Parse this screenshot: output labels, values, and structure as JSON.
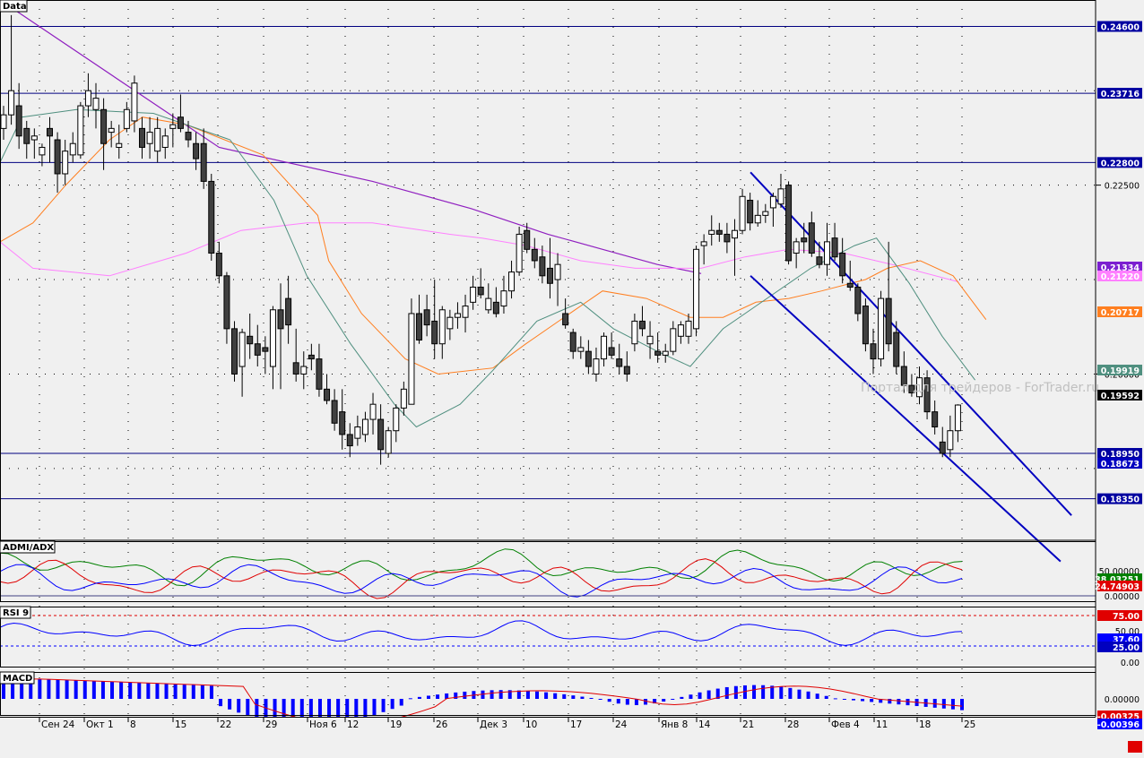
{
  "panels": {
    "main": {
      "label": "Data"
    },
    "admi": {
      "label": "ADMI/ADX",
      "ticks": [
        "50.00000",
        "0.00000"
      ],
      "badges": [
        "38.03251",
        "24.74903"
      ]
    },
    "rsi": {
      "label": "RSI 9",
      "ticks": [
        "75.00",
        "50.00",
        "25.00",
        "0.00"
      ],
      "badges": [
        "37.60"
      ]
    },
    "macd": {
      "label": "MACD",
      "ticks": [
        "0.00000"
      ],
      "badges": [
        "-0.00325",
        "-0.00396"
      ]
    }
  },
  "watermark": "Портал для трейдеров - ForTrader.ru",
  "chart_data": {
    "type": "candlestick",
    "ylim": [
      0.178,
      0.2495
    ],
    "price_ticks": [
      "0.22500",
      "0.20000"
    ],
    "x_labels": [
      "Сен 24",
      "Окт 1",
      "8",
      "15",
      "22",
      "29",
      "Ноя 6",
      "12",
      "19",
      "26",
      "Дек 3",
      "10",
      "17",
      "24",
      "Янв 8",
      "14",
      "21",
      "28",
      "Фев 4",
      "11",
      "18",
      "25"
    ],
    "levels": [
      {
        "value": 0.246,
        "label": "0.24600"
      },
      {
        "value": 0.23716,
        "label": "0.23716"
      },
      {
        "value": 0.228,
        "label": "0.22800"
      },
      {
        "value": 0.1895,
        "label": "0.18950"
      },
      {
        "value": 0.1835,
        "label": "0.18350"
      }
    ],
    "badges": [
      {
        "label": "0.21334",
        "color": "#7b1fd0"
      },
      {
        "label": "0.21220",
        "color": "#ff80ff"
      },
      {
        "label": "0.20717",
        "color": "#ff7f20"
      },
      {
        "label": "0.19919",
        "color": "#4f8f7f"
      },
      {
        "label": "0.19592",
        "color": "#000000"
      },
      {
        "label": "0.18673",
        "color": "#0000c0"
      }
    ],
    "colors": {
      "grid": "#000000",
      "level": "#000080",
      "channel": "#0000c0",
      "ma_long": "#9020c0",
      "ma_mid": "#ff80ff",
      "ma_short": "#ff7f20",
      "ma_fast": "#4f8f7f",
      "adx_green": "#008000",
      "adx_red": "#e00000",
      "adx_blue": "#0000ff",
      "rsi": "#0000ff",
      "macd_bar": "#0000ff",
      "macd_signal": "#e00000"
    },
    "candles": [
      [
        0.2325,
        0.2355,
        0.231,
        0.2343
      ],
      [
        0.2343,
        0.2475,
        0.233,
        0.2375
      ],
      [
        0.2355,
        0.2385,
        0.2298,
        0.2315
      ],
      [
        0.2325,
        0.2335,
        0.2285,
        0.2305
      ],
      [
        0.231,
        0.2325,
        0.2285,
        0.2315
      ],
      [
        0.229,
        0.2305,
        0.2275,
        0.23
      ],
      [
        0.2325,
        0.234,
        0.228,
        0.2315
      ],
      [
        0.231,
        0.232,
        0.224,
        0.2265
      ],
      [
        0.2265,
        0.231,
        0.225,
        0.2295
      ],
      [
        0.229,
        0.232,
        0.228,
        0.2305
      ],
      [
        0.229,
        0.236,
        0.2285,
        0.2355
      ],
      [
        0.2355,
        0.2398,
        0.234,
        0.2375
      ],
      [
        0.235,
        0.2385,
        0.2325,
        0.2365
      ],
      [
        0.235,
        0.2365,
        0.227,
        0.2305
      ],
      [
        0.232,
        0.2335,
        0.23,
        0.2325
      ],
      [
        0.23,
        0.233,
        0.2285,
        0.2305
      ],
      [
        0.2325,
        0.236,
        0.232,
        0.235
      ],
      [
        0.2335,
        0.2395,
        0.232,
        0.2385
      ],
      [
        0.2325,
        0.234,
        0.2285,
        0.23
      ],
      [
        0.2305,
        0.234,
        0.2285,
        0.232
      ],
      [
        0.2295,
        0.234,
        0.228,
        0.2325
      ],
      [
        0.23,
        0.2325,
        0.2285,
        0.2315
      ],
      [
        0.2325,
        0.2345,
        0.23,
        0.233
      ],
      [
        0.234,
        0.237,
        0.232,
        0.2325
      ],
      [
        0.232,
        0.2335,
        0.23,
        0.231
      ],
      [
        0.2305,
        0.232,
        0.227,
        0.2285
      ],
      [
        0.2305,
        0.2325,
        0.2245,
        0.2255
      ],
      [
        0.2255,
        0.2265,
        0.215,
        0.216
      ],
      [
        0.216,
        0.2175,
        0.212,
        0.213
      ],
      [
        0.213,
        0.2135,
        0.204,
        0.206
      ],
      [
        0.206,
        0.207,
        0.199,
        0.2
      ],
      [
        0.201,
        0.206,
        0.197,
        0.2055
      ],
      [
        0.205,
        0.208,
        0.202,
        0.204
      ],
      [
        0.204,
        0.2065,
        0.201,
        0.2025
      ],
      [
        0.2035,
        0.205,
        0.2,
        0.203
      ],
      [
        0.201,
        0.209,
        0.198,
        0.2085
      ],
      [
        0.2085,
        0.212,
        0.198,
        0.206
      ],
      [
        0.21,
        0.213,
        0.204,
        0.2065
      ],
      [
        0.2015,
        0.206,
        0.199,
        0.2
      ],
      [
        0.2,
        0.203,
        0.198,
        0.201
      ],
      [
        0.2025,
        0.204,
        0.2005,
        0.202
      ],
      [
        0.202,
        0.204,
        0.197,
        0.198
      ],
      [
        0.198,
        0.2,
        0.196,
        0.1965
      ],
      [
        0.1965,
        0.198,
        0.1925,
        0.1935
      ],
      [
        0.195,
        0.198,
        0.19,
        0.192
      ],
      [
        0.192,
        0.1935,
        0.189,
        0.1905
      ],
      [
        0.1915,
        0.1945,
        0.1905,
        0.193
      ],
      [
        0.192,
        0.195,
        0.191,
        0.194
      ],
      [
        0.194,
        0.1975,
        0.192,
        0.196
      ],
      [
        0.194,
        0.196,
        0.188,
        0.19
      ],
      [
        0.1895,
        0.193,
        0.189,
        0.1925
      ],
      [
        0.1925,
        0.196,
        0.191,
        0.1955
      ],
      [
        0.1955,
        0.199,
        0.1945,
        0.198
      ],
      [
        0.196,
        0.21,
        0.196,
        0.208
      ],
      [
        0.208,
        0.2105,
        0.204,
        0.2045
      ],
      [
        0.2085,
        0.2105,
        0.205,
        0.2065
      ],
      [
        0.207,
        0.2125,
        0.202,
        0.204
      ],
      [
        0.204,
        0.209,
        0.202,
        0.2085
      ],
      [
        0.206,
        0.2085,
        0.2045,
        0.2075
      ],
      [
        0.2075,
        0.2095,
        0.206,
        0.208
      ],
      [
        0.2075,
        0.2105,
        0.2055,
        0.209
      ],
      [
        0.2095,
        0.213,
        0.2085,
        0.2115
      ],
      [
        0.2115,
        0.214,
        0.21,
        0.2105
      ],
      [
        0.2085,
        0.212,
        0.208,
        0.21
      ],
      [
        0.2095,
        0.2115,
        0.2075,
        0.208
      ],
      [
        0.209,
        0.213,
        0.208,
        0.211
      ],
      [
        0.211,
        0.215,
        0.21,
        0.2135
      ],
      [
        0.2135,
        0.2195,
        0.213,
        0.2185
      ],
      [
        0.219,
        0.22,
        0.216,
        0.2165
      ],
      [
        0.2165,
        0.218,
        0.214,
        0.215
      ],
      [
        0.2155,
        0.217,
        0.212,
        0.213
      ],
      [
        0.214,
        0.218,
        0.21,
        0.212
      ],
      [
        0.2125,
        0.216,
        0.209,
        0.2145
      ],
      [
        0.208,
        0.21,
        0.206,
        0.2065
      ],
      [
        0.2055,
        0.206,
        0.202,
        0.203
      ],
      [
        0.203,
        0.205,
        0.202,
        0.2035
      ],
      [
        0.203,
        0.2045,
        0.2,
        0.201
      ],
      [
        0.2,
        0.2035,
        0.199,
        0.202
      ],
      [
        0.202,
        0.2055,
        0.201,
        0.205
      ],
      [
        0.2035,
        0.2055,
        0.202,
        0.2025
      ],
      [
        0.202,
        0.204,
        0.2,
        0.201
      ],
      [
        0.201,
        0.203,
        0.199,
        0.2
      ],
      [
        0.204,
        0.208,
        0.203,
        0.207
      ],
      [
        0.207,
        0.209,
        0.205,
        0.206
      ],
      [
        0.204,
        0.207,
        0.202,
        0.205
      ],
      [
        0.203,
        0.2055,
        0.2015,
        0.2025
      ],
      [
        0.2025,
        0.204,
        0.2015,
        0.203
      ],
      [
        0.203,
        0.207,
        0.2025,
        0.206
      ],
      [
        0.205,
        0.207,
        0.204,
        0.2065
      ],
      [
        0.205,
        0.208,
        0.204,
        0.207
      ],
      [
        0.206,
        0.217,
        0.205,
        0.2165
      ],
      [
        0.217,
        0.2185,
        0.2145,
        0.2175
      ],
      [
        0.2185,
        0.221,
        0.217,
        0.219
      ],
      [
        0.219,
        0.22,
        0.2175,
        0.2185
      ],
      [
        0.2185,
        0.22,
        0.216,
        0.2175
      ],
      [
        0.218,
        0.2205,
        0.213,
        0.219
      ],
      [
        0.219,
        0.2245,
        0.2185,
        0.2235
      ],
      [
        0.223,
        0.224,
        0.219,
        0.22
      ],
      [
        0.22,
        0.223,
        0.2195,
        0.221
      ],
      [
        0.221,
        0.2225,
        0.22,
        0.2215
      ],
      [
        0.222,
        0.224,
        0.2195,
        0.2235
      ],
      [
        0.2225,
        0.2265,
        0.222,
        0.2245
      ],
      [
        0.225,
        0.2255,
        0.2145,
        0.215
      ],
      [
        0.216,
        0.218,
        0.214,
        0.2175
      ],
      [
        0.218,
        0.22,
        0.216,
        0.2175
      ],
      [
        0.22,
        0.2215,
        0.2155,
        0.216
      ],
      [
        0.2155,
        0.2175,
        0.214,
        0.2145
      ],
      [
        0.2145,
        0.22,
        0.213,
        0.2175
      ],
      [
        0.218,
        0.22,
        0.215,
        0.2155
      ],
      [
        0.216,
        0.218,
        0.212,
        0.213
      ],
      [
        0.212,
        0.215,
        0.211,
        0.2115
      ],
      [
        0.2115,
        0.212,
        0.207,
        0.208
      ],
      [
        0.209,
        0.21,
        0.203,
        0.204
      ],
      [
        0.204,
        0.206,
        0.2,
        0.202
      ],
      [
        0.202,
        0.211,
        0.201,
        0.21
      ],
      [
        0.21,
        0.2175,
        0.203,
        0.204
      ],
      [
        0.2055,
        0.207,
        0.2,
        0.201
      ],
      [
        0.201,
        0.203,
        0.1975,
        0.1985
      ],
      [
        0.1985,
        0.2,
        0.197,
        0.1975
      ],
      [
        0.197,
        0.201,
        0.196,
        0.1995
      ],
      [
        0.1995,
        0.2005,
        0.194,
        0.195
      ],
      [
        0.195,
        0.1965,
        0.192,
        0.193
      ],
      [
        0.191,
        0.193,
        0.189,
        0.1895
      ],
      [
        0.19,
        0.1945,
        0.189,
        0.1925
      ],
      [
        0.1925,
        0.196,
        0.191,
        0.1959
      ]
    ],
    "ma_long": [
      [
        0.2495,
        0
      ],
      [
        0.23,
        0.2
      ],
      [
        0.2255,
        0.34
      ],
      [
        0.2219,
        0.43
      ],
      [
        0.2185,
        0.5
      ],
      [
        0.2165,
        0.55
      ],
      [
        0.2145,
        0.6
      ],
      [
        0.2133,
        0.64
      ]
    ],
    "ma_mid": [
      [
        0.2175,
        0
      ],
      [
        0.214,
        0.03
      ],
      [
        0.213,
        0.1
      ],
      [
        0.216,
        0.17
      ],
      [
        0.219,
        0.22
      ],
      [
        0.22,
        0.28
      ],
      [
        0.22,
        0.34
      ],
      [
        0.2185,
        0.41
      ],
      [
        0.218,
        0.44
      ],
      [
        0.217,
        0.48
      ],
      [
        0.215,
        0.53
      ],
      [
        0.214,
        0.58
      ],
      [
        0.214,
        0.64
      ],
      [
        0.2155,
        0.68
      ],
      [
        0.2165,
        0.72
      ],
      [
        0.216,
        0.77
      ],
      [
        0.2143,
        0.82
      ],
      [
        0.2122,
        0.875
      ]
    ],
    "ma_short": [
      [
        0.2175,
        0
      ],
      [
        0.22,
        0.03
      ],
      [
        0.225,
        0.06
      ],
      [
        0.231,
        0.1
      ],
      [
        0.234,
        0.13
      ],
      [
        0.233,
        0.17
      ],
      [
        0.229,
        0.24
      ],
      [
        0.221,
        0.29
      ],
      [
        0.215,
        0.3
      ],
      [
        0.208,
        0.33
      ],
      [
        0.202,
        0.37
      ],
      [
        0.2,
        0.4
      ],
      [
        0.2008,
        0.45
      ],
      [
        0.204,
        0.48
      ],
      [
        0.207,
        0.51
      ],
      [
        0.211,
        0.55
      ],
      [
        0.21,
        0.59
      ],
      [
        0.2075,
        0.63
      ],
      [
        0.2075,
        0.66
      ],
      [
        0.2095,
        0.69
      ],
      [
        0.21,
        0.72
      ],
      [
        0.211,
        0.75
      ],
      [
        0.2125,
        0.79
      ],
      [
        0.214,
        0.81
      ],
      [
        0.215,
        0.84
      ],
      [
        0.213,
        0.87
      ],
      [
        0.2072,
        0.9
      ]
    ],
    "ma_fast": [
      [
        0.228,
        0
      ],
      [
        0.234,
        0.02
      ],
      [
        0.235,
        0.07
      ],
      [
        0.2345,
        0.14
      ],
      [
        0.231,
        0.21
      ],
      [
        0.223,
        0.25
      ],
      [
        0.213,
        0.28
      ],
      [
        0.204,
        0.32
      ],
      [
        0.196,
        0.36
      ],
      [
        0.193,
        0.38
      ],
      [
        0.196,
        0.42
      ],
      [
        0.2005,
        0.45
      ],
      [
        0.207,
        0.49
      ],
      [
        0.2095,
        0.53
      ],
      [
        0.206,
        0.56
      ],
      [
        0.203,
        0.6
      ],
      [
        0.201,
        0.63
      ],
      [
        0.206,
        0.66
      ],
      [
        0.21,
        0.7
      ],
      [
        0.214,
        0.74
      ],
      [
        0.217,
        0.78
      ],
      [
        0.218,
        0.8
      ],
      [
        0.212,
        0.83
      ],
      [
        0.205,
        0.86
      ],
      [
        0.1992,
        0.89
      ]
    ],
    "channel": {
      "upper": [
        {
          "x": 0.685,
          "value": 0.2267
        },
        {
          "x": 0.978,
          "value": 0.1813
        }
      ],
      "lower": [
        {
          "x": 0.685,
          "value": 0.213
        },
        {
          "x": 0.968,
          "value": 0.1752
        }
      ]
    }
  }
}
